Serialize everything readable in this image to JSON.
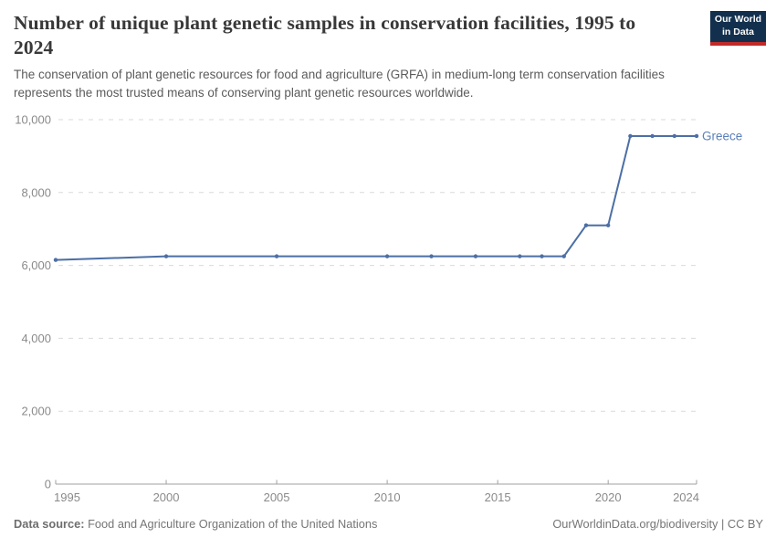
{
  "header": {
    "title": "Number of unique plant genetic samples in conservation facilities, 1995 to 2024",
    "subtitle": "The conservation of plant genetic resources for food and agriculture (GRFA) in medium-long term conservation facilities represents the most trusted means of conserving plant genetic resources worldwide."
  },
  "logo": {
    "line1": "Our World",
    "line2": "in Data",
    "bg_color": "#12304d",
    "bar_color": "#bf2b29"
  },
  "chart_data": {
    "type": "line",
    "title": "Number of unique plant genetic samples in conservation facilities, 1995 to 2024",
    "x": [
      1995,
      2000,
      2005,
      2010,
      2012,
      2014,
      2016,
      2017,
      2018,
      2019,
      2020,
      2021,
      2022,
      2023,
      2024
    ],
    "series": [
      {
        "name": "Greece",
        "color": "#4c6fa5",
        "label_color": "#5b7fb8",
        "values": [
          6150,
          6250,
          6250,
          6250,
          6250,
          6250,
          6250,
          6250,
          6250,
          7100,
          7100,
          9550,
          9550,
          9550,
          9550
        ]
      }
    ],
    "xlabel": "",
    "ylabel": "",
    "xlim": [
      1995,
      2024
    ],
    "ylim": [
      0,
      10000
    ],
    "xticks": [
      1995,
      2000,
      2005,
      2010,
      2015,
      2020,
      2024
    ],
    "yticks": [
      0,
      2000,
      4000,
      6000,
      8000,
      10000
    ],
    "grid": "horizontal-dashed",
    "legend": "end-of-line-label",
    "colors": {
      "grid": "#dadada",
      "axis": "#a0a0a0",
      "tick_label": "#8a8a8a"
    }
  },
  "footer": {
    "source_label": "Data source:",
    "source_value": "Food and Agriculture Organization of the United Nations",
    "right_text": "OurWorldinData.org/biodiversity | CC BY"
  }
}
